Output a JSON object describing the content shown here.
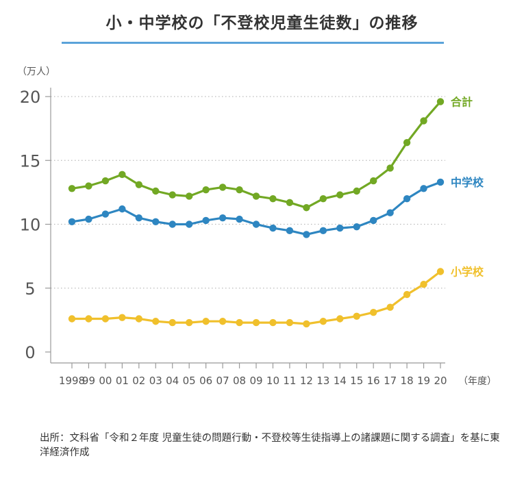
{
  "title": "小・中学校の「不登校児童生徒数」の推移",
  "colors": {
    "accent_rule": "#5aa3d9",
    "total": "#72a824",
    "junior": "#2e86c1",
    "elementary": "#f0c02c",
    "axis": "#999999",
    "grid": "#bbbbbb",
    "tick_text": "#555555"
  },
  "source": "出所：文科省「令和２年度 児童生徒の問題行動・不登校等生徒指導上の諸課題に関する調査」を基に東洋経済作成",
  "chart_data": {
    "type": "line",
    "title": "小・中学校の「不登校児童生徒数」の推移",
    "ylabel": "（万人）",
    "xlabel": "（年度）",
    "ylim": [
      0,
      20
    ],
    "yticks": [
      0,
      5,
      10,
      15,
      20
    ],
    "grid": true,
    "legend": "inline-right",
    "categories": [
      "1998",
      "99",
      "00",
      "01",
      "02",
      "03",
      "04",
      "05",
      "06",
      "07",
      "08",
      "09",
      "10",
      "11",
      "12",
      "13",
      "14",
      "15",
      "16",
      "17",
      "18",
      "19",
      "20"
    ],
    "series": [
      {
        "name": "合計",
        "color": "#72a824",
        "values": [
          12.8,
          13.0,
          13.4,
          13.9,
          13.1,
          12.6,
          12.3,
          12.2,
          12.7,
          12.9,
          12.7,
          12.2,
          12.0,
          11.7,
          11.3,
          12.0,
          12.3,
          12.6,
          13.4,
          14.4,
          16.4,
          18.1,
          19.6
        ]
      },
      {
        "name": "中学校",
        "color": "#2e86c1",
        "values": [
          10.2,
          10.4,
          10.8,
          11.2,
          10.5,
          10.2,
          10.0,
          10.0,
          10.3,
          10.5,
          10.4,
          10.0,
          9.7,
          9.5,
          9.2,
          9.5,
          9.7,
          9.8,
          10.3,
          10.9,
          12.0,
          12.8,
          13.3
        ]
      },
      {
        "name": "小学校",
        "color": "#f0c02c",
        "values": [
          2.6,
          2.6,
          2.6,
          2.7,
          2.6,
          2.4,
          2.3,
          2.3,
          2.4,
          2.4,
          2.3,
          2.3,
          2.3,
          2.3,
          2.2,
          2.4,
          2.6,
          2.8,
          3.1,
          3.5,
          4.5,
          5.3,
          6.3
        ]
      }
    ]
  }
}
